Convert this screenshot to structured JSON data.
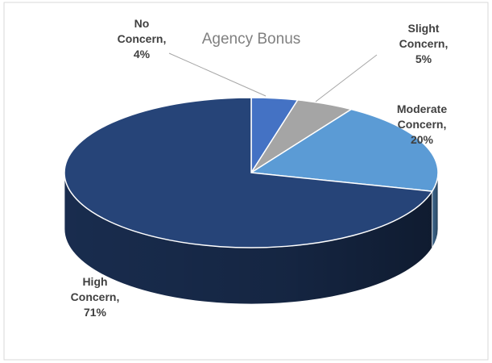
{
  "chart_data": {
    "type": "pie3d",
    "title": "Agency Bonus",
    "categories": [
      "No Concern,",
      "Slight Concern,",
      "Moderate Concern,",
      "High Concern,"
    ],
    "values": [
      4,
      5,
      20,
      71
    ],
    "value_labels": [
      "4%",
      "5%",
      "20%",
      "71%"
    ],
    "colors": [
      "#4472c4",
      "#a5a5a5",
      "#5b9bd5",
      "#264478"
    ]
  }
}
